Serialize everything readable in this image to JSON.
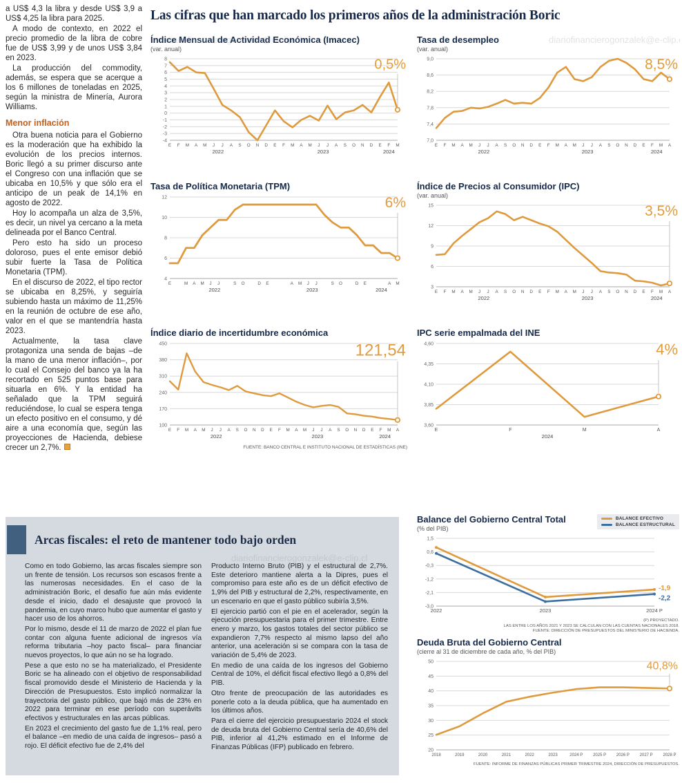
{
  "watermark": "diariofinancierogonzalek@e-clip.cl",
  "colors": {
    "accent_orange": "#E49B3A",
    "line_orange": "#DE9A3C",
    "line_blue": "#3C6E9F",
    "navy": "#16294B"
  },
  "article": {
    "paragraphs": [
      "a US$ 4,3 la libra y desde US$ 3,9 a US$ 4,25 la libra para 2025.",
      "A modo de contexto, en 2022 el precio promedio de la libra de cobre fue de US$ 3,99 y de unos US$ 3,84 en 2023.",
      "La producción del commodity, además, se espera que se acerque a los 6 millones de toneladas en 2025, según la ministra de Minería, Aurora Williams."
    ],
    "subhead": "Menor inflación",
    "paragraphs2": [
      "Otra buena noticia para el Gobierno es la moderación que ha exhibido la evolución de los precios internos. Boric llegó a su primer discurso ante el Congreso con una inflación que se ubicaba en 10,5% y que sólo era el anticipo de un peak de 14,1% en agosto de 2022.",
      "Hoy lo acompaña un alza de 3,5%, es decir, un nivel ya cercano a la meta delineada por el Banco Central.",
      "Pero esto ha sido un proceso doloroso, pues el ente emisor debió subir fuerte la Tasa de Política Monetaria (TPM).",
      "En el discurso de 2022, el tipo rector se ubicaba en 8,25%, y seguiría subiendo hasta un máximo de 11,25% en la reunión de octubre de ese año, valor en el que se mantendría hasta 2023.",
      "Actualmente, la tasa clave protagoniza una senda de bajas –de la mano de una menor inflación–, por lo cual el Consejo del banco ya la ha recortado en 525 puntos base para situarla en 6%. Y la entidad ha señalado que la TPM seguirá reduciéndose, lo cual se espera tenga un efecto positivo en el consumo, y dé aire a una economía que, según las proyecciones de Hacienda, debiese crecer un 2,7%."
    ]
  },
  "main_title": "Las cifras que han marcado los primeros años de la administración Boric",
  "source_note": "FUENTE: BANCO CENTRAL E INSTITUTO NACIONAL DE ESTADÍSTICAS (INE)",
  "fiscal": {
    "title": "Arcas fiscales: el reto de mantener todo bajo orden",
    "col1": [
      "Como en todo Gobierno, las arcas fiscales siempre son un frente de tensión. Los recursos son escasos frente a las numerosas necesidades. En el caso de la administración Boric, el desafío fue aún más evidente desde el inicio, dado el desajuste que provocó la pandemia, en cuyo marco hubo que aumentar el gasto y hacer uso de los ahorros.",
      "Por lo mismo, desde el 11 de marzo de 2022 el plan fue contar con alguna fuente adicional de ingresos vía reforma tributaria –hoy pacto fiscal– para financiar nuevos proyectos, lo que aún no se ha logrado.",
      "Pese a que esto no se ha materializado, el Presidente Boric se ha alineado con el objetivo de responsabilidad fiscal promovido desde el Ministerio de Hacienda y la Dirección de Presupuestos. Esto implicó normalizar la trayectoria del gasto público, que bajó más de 23% en 2022 para terminar en ese período con superávits efectivos y estructurales en las arcas públicas.",
      "En 2023 el crecimiento del gasto fue de 1,1% real, pero el balance –en medio de una caída de ingresos– pasó a rojo. El déficit efectivo fue de 2,4% del"
    ],
    "col2": [
      "Producto Interno Bruto (PIB) y el estructural de 2,7%. Este deterioro mantiene alerta a la Dipres, pues el compromiso para este año es de un déficit efectivo de 1,9% del PIB y estructural de 2,2%, respectivamente, en un escenario en que el gasto público subiría 3,5%.",
      "El ejercicio partió con el pie en el acelerador, según la ejecución presupuestaria para el primer trimestre. Entre enero y marzo, los gastos totales del sector público se expandieron 7,7% respecto al mismo lapso del año anterior, una aceleración si se compara con la tasa de variación de 5,4% de 2023.",
      "En medio de una caída de los ingresos del Gobierno Central de 10%, el déficit fiscal efectivo llegó a 0,8% del PIB.",
      "Otro frente de preocupación de las autoridades es ponerle coto a la deuda pública, que ha aumentado en los últimos años.",
      "Para el cierre del ejercicio presupuestario 2024 el stock de deuda bruta del Gobierno Central sería de 40,6% del PIB, inferior al 41,2% estimado en el Informe de Finanzas Públicas (IFP) publicado en febrero."
    ]
  },
  "chart_data": [
    {
      "type": "line",
      "title": "Índice Mensual de Actividad Económica (Imacec)",
      "subtitle": "(var. anual)",
      "highlight": "0,5%",
      "hl_size": 20,
      "y_ticks": [
        "8",
        "7",
        "6",
        "5",
        "4",
        "3",
        "2",
        "1",
        "0",
        "-1",
        "-2",
        "-3",
        "-4"
      ],
      "x_labels": [
        "E",
        "F",
        "M",
        "A",
        "M",
        "J",
        "J",
        "A",
        "S",
        "O",
        "N",
        "D",
        "E",
        "F",
        "M",
        "A",
        "M",
        "J",
        "J",
        "A",
        "S",
        "O",
        "N",
        "D",
        "E",
        "F",
        "M"
      ],
      "years": [
        {
          "text": "2022",
          "from": 0,
          "to": 11
        },
        {
          "text": "2023",
          "from": 12,
          "to": 23
        },
        {
          "text": "2024",
          "from": 24,
          "to": 26
        }
      ],
      "series": [
        {
          "name": "imacec",
          "color": "#DE9A3C",
          "width": 2.6,
          "markers": "end",
          "values": [
            7.5,
            6.2,
            6.8,
            6.0,
            5.9,
            3.6,
            1.2,
            0.4,
            -0.6,
            -2.8,
            -4.0,
            -1.8,
            0.4,
            -1.2,
            -2.1,
            -1.0,
            -0.4,
            -1.1,
            1.1,
            -0.9,
            0.1,
            0.4,
            1.2,
            0.1,
            2.4,
            4.5,
            0.5
          ]
        }
      ]
    },
    {
      "type": "line",
      "title": "Tasa de desempleo",
      "subtitle": "(var. anual)",
      "highlight": "8,5%",
      "hl_size": 21,
      "y_ticks": [
        "9,0",
        "8,6",
        "8,2",
        "7,8",
        "7,4",
        "7,0"
      ],
      "x_labels": [
        "E",
        "F",
        "M",
        "A",
        "M",
        "J",
        "J",
        "A",
        "S",
        "O",
        "N",
        "D",
        "E",
        "F",
        "M",
        "A",
        "M",
        "J",
        "J",
        "A",
        "S",
        "O",
        "N",
        "D",
        "E",
        "F",
        "M",
        "A"
      ],
      "years": [
        {
          "text": "2022",
          "from": 0,
          "to": 11
        },
        {
          "text": "2023",
          "from": 12,
          "to": 23
        },
        {
          "text": "2024",
          "from": 24,
          "to": 27
        }
      ],
      "series": [
        {
          "name": "desempleo",
          "color": "#DE9A3C",
          "width": 2.6,
          "markers": "end",
          "values": [
            7.3,
            7.55,
            7.7,
            7.72,
            7.8,
            7.78,
            7.82,
            7.9,
            7.99,
            7.9,
            7.92,
            7.9,
            8.04,
            8.3,
            8.66,
            8.8,
            8.5,
            8.45,
            8.55,
            8.8,
            8.95,
            9.0,
            8.9,
            8.74,
            8.5,
            8.45,
            8.66,
            8.5
          ]
        }
      ]
    },
    {
      "type": "line",
      "title": "Tasa de Política Monetaria (TPM)",
      "subtitle": "",
      "highlight": "6%",
      "hl_size": 21,
      "y_ticks": [
        "12",
        "10",
        "8",
        "6",
        "4"
      ],
      "x_labels": [
        "E",
        "",
        "M",
        "A",
        "M",
        "J",
        "J",
        "",
        "S",
        "O",
        "",
        "D",
        "E",
        "",
        "",
        "A",
        "M",
        "J",
        "J",
        "",
        "S",
        "O",
        "",
        "D",
        "E",
        "",
        "",
        "A",
        "M"
      ],
      "years": [
        {
          "text": "2022",
          "from": 0,
          "to": 11
        },
        {
          "text": "2023",
          "from": 12,
          "to": 23
        },
        {
          "text": "2024",
          "from": 24,
          "to": 28
        }
      ],
      "series": [
        {
          "name": "tpm",
          "color": "#DE9A3C",
          "width": 2.8,
          "markers": "end",
          "values": [
            5.5,
            5.5,
            7.0,
            7.0,
            8.25,
            9.0,
            9.75,
            9.75,
            10.75,
            11.25,
            11.25,
            11.25,
            11.25,
            11.25,
            11.25,
            11.25,
            11.25,
            11.25,
            11.25,
            10.25,
            9.5,
            9.0,
            9.0,
            8.25,
            7.25,
            7.25,
            6.5,
            6.5,
            6.0
          ]
        }
      ]
    },
    {
      "type": "line",
      "title": "Índice de Precios al Consumidor (IPC)",
      "subtitle": "(var. anual)",
      "highlight": "3,5%",
      "hl_size": 21,
      "y_ticks": [
        "15",
        "12",
        "9",
        "6",
        "3"
      ],
      "x_labels": [
        "E",
        "F",
        "M",
        "A",
        "M",
        "J",
        "J",
        "A",
        "S",
        "O",
        "N",
        "D",
        "E",
        "F",
        "M",
        "A",
        "M",
        "J",
        "J",
        "A",
        "S",
        "O",
        "N",
        "D",
        "E",
        "F",
        "M",
        "A"
      ],
      "years": [
        {
          "text": "2022",
          "from": 0,
          "to": 11
        },
        {
          "text": "2023",
          "from": 12,
          "to": 23
        },
        {
          "text": "2024",
          "from": 24,
          "to": 27
        }
      ],
      "series": [
        {
          "name": "ipc",
          "color": "#DE9A3C",
          "width": 2.6,
          "markers": "end",
          "values": [
            7.7,
            7.8,
            9.4,
            10.5,
            11.5,
            12.5,
            13.1,
            14.1,
            13.7,
            12.8,
            13.3,
            12.8,
            12.3,
            11.9,
            11.1,
            9.9,
            8.7,
            7.6,
            6.5,
            5.3,
            5.1,
            5.0,
            4.8,
            3.9,
            3.8,
            3.6,
            3.2,
            3.5
          ]
        }
      ]
    },
    {
      "type": "line",
      "title": "Índice diario de incertidumbre económica",
      "subtitle": "",
      "highlight": "121,54",
      "hl_size": 24,
      "y_ticks": [
        "450",
        "380",
        "310",
        "240",
        "170",
        "100"
      ],
      "x_labels": [
        "E",
        "F",
        "M",
        "A",
        "M",
        "J",
        "J",
        "A",
        "S",
        "O",
        "N",
        "D",
        "E",
        "F",
        "M",
        "A",
        "M",
        "J",
        "J",
        "A",
        "S",
        "O",
        "N",
        "D",
        "E",
        "F",
        "M",
        "A"
      ],
      "years": [
        {
          "text": "2022",
          "from": 0,
          "to": 11
        },
        {
          "text": "2023",
          "from": 12,
          "to": 23
        },
        {
          "text": "2024",
          "from": 24,
          "to": 27
        }
      ],
      "series": [
        {
          "name": "incertidumbre",
          "color": "#DE9A3C",
          "width": 2.4,
          "markers": "end",
          "values": [
            288,
            252,
            408,
            330,
            284,
            272,
            262,
            250,
            268,
            244,
            236,
            228,
            224,
            236,
            218,
            200,
            186,
            176,
            182,
            186,
            178,
            150,
            146,
            140,
            136,
            130,
            126,
            121.54
          ]
        }
      ]
    },
    {
      "type": "line",
      "title": "IPC serie empalmada del INE",
      "subtitle": "",
      "highlight": "4%",
      "hl_size": 22,
      "right_pad": 30,
      "x_font": 7,
      "y_ticks": [
        "4,60",
        "4,35",
        "4,10",
        "3,85",
        "3,60"
      ],
      "x_labels": [
        "E",
        "F",
        "M",
        "A"
      ],
      "years": [
        {
          "text": "2024",
          "from": 0,
          "to": 3
        }
      ],
      "series": [
        {
          "name": "ipc_empalmada",
          "color": "#DE9A3C",
          "width": 2.6,
          "markers": "end",
          "values": [
            3.8,
            4.5,
            3.7,
            3.95
          ]
        }
      ]
    },
    {
      "type": "line",
      "title": "Balance del Gobierno Central Total",
      "subtitle": "(% del PIB)",
      "right_pad": 36,
      "x_font": 7.5,
      "y_ticks": [
        "1,5",
        "0,6",
        "-0,3",
        "-1,2",
        "-2,1",
        "-3,0"
      ],
      "x_labels": [
        "2022",
        "2023",
        "2024 P"
      ],
      "series": [
        {
          "name": "balance_efectivo",
          "legend": "BALANCE EFECTIVO",
          "color": "#DE9A3C",
          "width": 2.6,
          "markers": "all",
          "end_label": "-1,9",
          "label_dy": 1,
          "values": [
            0.9,
            -2.4,
            -1.9
          ]
        },
        {
          "name": "balance_estructural",
          "legend": "BALANCE ESTRUCTURAL",
          "color": "#3C6E9F",
          "width": 2.6,
          "markers": "all",
          "end_label": "-2,2",
          "label_dy": 9,
          "values": [
            0.5,
            -2.7,
            -2.2
          ]
        }
      ],
      "footnotes": [
        "(P) PROYECTADO.",
        "LAS ENTRE LOS AÑOS 2021 Y 2023 SE CALCULAN CON LAS CUENTAS NACIONALES 2018.",
        "FUENTE: DIRECCIÓN DE PRESUPUESTOS DEL MINISTERIO DE HACIENDA."
      ]
    },
    {
      "type": "line",
      "title": "Deuda Bruta del Gobierno Central",
      "subtitle": "(cierre al 31 de diciembre de cada año, % del PIB)",
      "highlight": "40,8%",
      "hl_size": 16,
      "x_font": 6,
      "y_ticks": [
        "50",
        "45",
        "40",
        "35",
        "30",
        "25",
        "20"
      ],
      "x_labels": [
        "2018",
        "2019",
        "2020",
        "2021",
        "2022",
        "2023",
        "2024 P",
        "2025 P",
        "2026 P",
        "2027 P",
        "2028 P"
      ],
      "series": [
        {
          "name": "deuda_bruta",
          "color": "#DE9A3C",
          "width": 2.6,
          "markers": "end",
          "values": [
            25.1,
            28.0,
            32.4,
            36.3,
            38.0,
            39.4,
            40.6,
            41.2,
            41.2,
            41.0,
            40.8
          ]
        }
      ],
      "footnote": "FUENTE: INFORME DE FINANZAS PÚBLICAS PRIMER TRIMESTRE 2024, DIRECCIÓN DE PRESUPUESTOS."
    }
  ]
}
